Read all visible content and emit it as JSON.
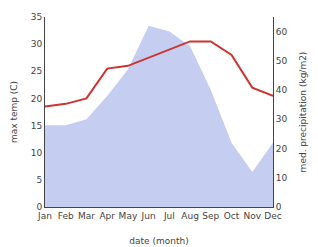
{
  "chart_data": {
    "type": "line",
    "categories": [
      "Jan",
      "Feb",
      "Mar",
      "Apr",
      "May",
      "Jun",
      "Jul",
      "Aug",
      "Sep",
      "Oct",
      "Nov",
      "Dec"
    ],
    "series": [
      {
        "type": "area",
        "axis": "y2",
        "color": "#c5cef0",
        "values": [
          28,
          28,
          30,
          38,
          47,
          62,
          60,
          55,
          40,
          22,
          12,
          22
        ]
      },
      {
        "type": "line",
        "axis": "y",
        "color": "#cc3333",
        "values": [
          18.5,
          19.0,
          20.0,
          25.5,
          26.0,
          27.5,
          29.0,
          30.5,
          30.5,
          28.0,
          22.0,
          20.5
        ]
      }
    ],
    "xlabel": "date (month)",
    "ylabel": "max temp (C)",
    "y2label": "med. precipitation (kg/m2)",
    "ylim": [
      0,
      35
    ],
    "yticks": [
      0,
      5,
      10,
      15,
      20,
      25,
      30,
      35
    ],
    "y2lim": [
      0,
      65
    ],
    "y2ticks": [
      0,
      10,
      20,
      30,
      40,
      50,
      60
    ],
    "grid": false
  }
}
